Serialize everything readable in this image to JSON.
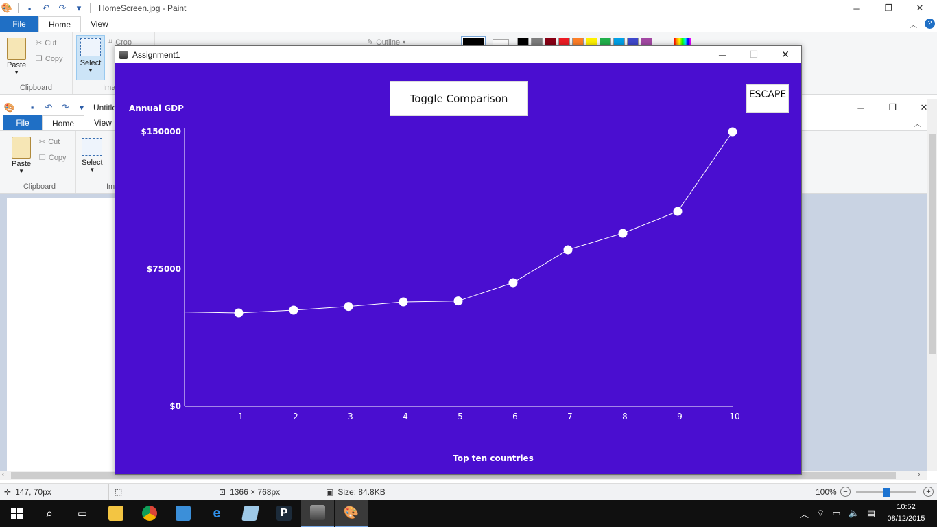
{
  "paint": {
    "title": "HomeScreen.jpg - Paint",
    "tabs": [
      "File",
      "Home",
      "View"
    ],
    "clipboard": {
      "paste": "Paste",
      "cut": "Cut",
      "copy": "Copy",
      "group": "Clipboard"
    },
    "image": {
      "select": "Select",
      "crop": "Crop",
      "group": "Ima"
    },
    "outline": "Outline",
    "palette": [
      "#000000",
      "#7f7f7f",
      "#880015",
      "#ed1c24",
      "#ff7f27",
      "#fff200",
      "#22b14c",
      "#00a2e8",
      "#3f48cc",
      "#a349a4"
    ]
  },
  "paint_inner": {
    "title": "Untitled",
    "tabs": [
      "File",
      "Home",
      "View"
    ],
    "clipboard": {
      "paste": "Paste",
      "cut": "Cut",
      "copy": "Copy",
      "group": "Clipboard"
    },
    "image": {
      "select": "Select",
      "group": "Im"
    }
  },
  "statusbar": {
    "cursor": "147, 70px",
    "dimensions": "1366 × 768px",
    "size": "Size: 84.8KB",
    "zoom": "100%"
  },
  "taskbar": {
    "time": "10:52",
    "date": "08/12/2015"
  },
  "app": {
    "title": "Assignment1",
    "toggle_button": "Toggle Comparison",
    "escape_button": "ESCAPE",
    "colors": {
      "background": "#4a0ed0",
      "foreground": "#ffffff"
    }
  },
  "chart_data": {
    "type": "line",
    "ylabel": "Annual GDP",
    "xlabel": "Top ten countries",
    "y_ticks": [
      "$150000",
      "$75000",
      "$0"
    ],
    "y_tick_values": [
      150000,
      75000,
      0
    ],
    "ylim": [
      0,
      150000
    ],
    "x": [
      1,
      2,
      3,
      4,
      5,
      6,
      7,
      8,
      9,
      10
    ],
    "values": [
      51000,
      52500,
      54500,
      57000,
      57500,
      67500,
      85500,
      94500,
      106500,
      150000
    ],
    "origin_value": 51500,
    "grid": false,
    "legend": "none"
  }
}
